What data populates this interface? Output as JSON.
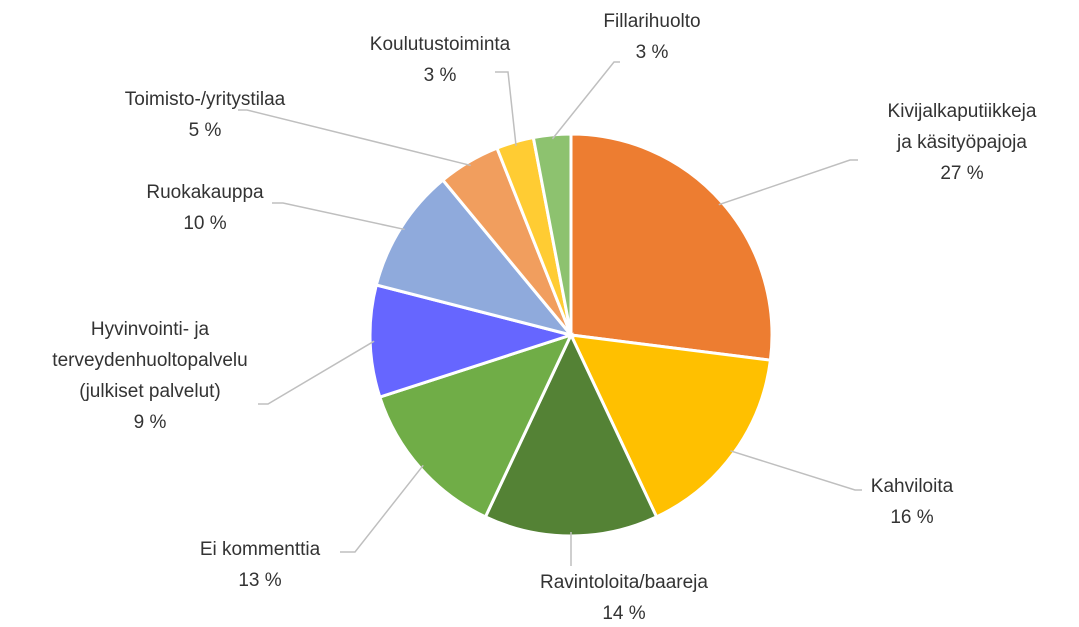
{
  "chart_data": {
    "type": "pie",
    "categories": [
      "Kivijalkaputiikkeja\nja käsityöpajoja",
      "Kahviloita",
      "Ravintoloita/baareja",
      "Ei kommenttia",
      "Hyvinvointi- ja\nterveydenhuoltopalvelu\n(julkiset palvelut)",
      "Ruokakauppa",
      "Toimisto-/yritystilaa",
      "Koulutustoiminta",
      "Fillarihuolto"
    ],
    "values": [
      27,
      16,
      14,
      13,
      9,
      10,
      5,
      3,
      3
    ],
    "value_labels": [
      "27 %",
      "16 %",
      "14 %",
      "13 %",
      "9 %",
      "10 %",
      "5 %",
      "3 %",
      "3 %"
    ],
    "colors": [
      "#ED7D31",
      "#FFC000",
      "#548235",
      "#70AD47",
      "#6666FF",
      "#8FAADC",
      "#F19E5E",
      "#FFCC33",
      "#8DC26F"
    ]
  }
}
